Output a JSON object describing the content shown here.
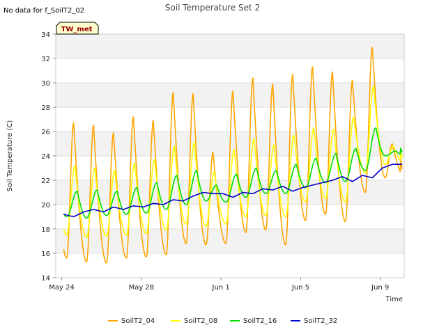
{
  "chart_data": {
    "type": "line",
    "title": "Soil Temperature Set 2",
    "note": "No data for f_SoilT2_02",
    "badge": "TW_met",
    "xlabel": "Time",
    "ylabel": "Soil Temperature (C)",
    "xlim": [
      -0.3,
      17.2
    ],
    "ylim": [
      14,
      34
    ],
    "y_ticks": [
      14,
      16,
      18,
      20,
      22,
      24,
      26,
      28,
      30,
      32,
      34
    ],
    "x_ticks": [
      {
        "value": 0,
        "label": "May 24"
      },
      {
        "value": 4,
        "label": "May 28"
      },
      {
        "value": 8,
        "label": "Jun 1"
      },
      {
        "value": 12,
        "label": "Jun 5"
      },
      {
        "value": 16,
        "label": "Jun 9"
      }
    ],
    "grid": "horizontal bands",
    "legend_position": "bottom",
    "series": [
      {
        "name": "SoilT2_04",
        "color": "#FFA500",
        "peak_hour": 0.6,
        "daily": [
          {
            "day": 0,
            "min": 15.6,
            "max": 26.7
          },
          {
            "day": 1,
            "min": 15.3,
            "max": 26.5
          },
          {
            "day": 2,
            "min": 15.2,
            "max": 25.9
          },
          {
            "day": 3,
            "min": 15.6,
            "max": 27.2
          },
          {
            "day": 4,
            "min": 15.7,
            "max": 26.9
          },
          {
            "day": 5,
            "min": 15.9,
            "max": 29.2
          },
          {
            "day": 6,
            "min": 16.8,
            "max": 29.1
          },
          {
            "day": 7,
            "min": 16.7,
            "max": 24.3
          },
          {
            "day": 8,
            "min": 16.8,
            "max": 29.3
          },
          {
            "day": 9,
            "min": 17.7,
            "max": 30.4
          },
          {
            "day": 10,
            "min": 17.9,
            "max": 29.9
          },
          {
            "day": 11,
            "min": 16.7,
            "max": 30.7
          },
          {
            "day": 12,
            "min": 18.7,
            "max": 31.3
          },
          {
            "day": 13,
            "min": 19.2,
            "max": 30.9
          },
          {
            "day": 14,
            "min": 18.6,
            "max": 30.2
          },
          {
            "day": 15,
            "min": 21.0,
            "max": 32.9
          },
          {
            "day": 16,
            "min": 22.2,
            "max": 25.0
          }
        ]
      },
      {
        "name": "SoilT2_08",
        "color": "#FFFF00",
        "peak_hour": 0.66,
        "daily": [
          {
            "day": 0,
            "min": 17.5,
            "max": 23.2
          },
          {
            "day": 1,
            "min": 17.3,
            "max": 23.0
          },
          {
            "day": 2,
            "min": 17.4,
            "max": 22.8
          },
          {
            "day": 3,
            "min": 17.5,
            "max": 23.4
          },
          {
            "day": 4,
            "min": 17.6,
            "max": 23.7
          },
          {
            "day": 5,
            "min": 17.9,
            "max": 24.8
          },
          {
            "day": 6,
            "min": 18.4,
            "max": 25.1
          },
          {
            "day": 7,
            "min": 18.2,
            "max": 22.7
          },
          {
            "day": 8,
            "min": 18.4,
            "max": 24.5
          },
          {
            "day": 9,
            "min": 19.0,
            "max": 25.4
          },
          {
            "day": 10,
            "min": 19.1,
            "max": 24.9
          },
          {
            "day": 11,
            "min": 19.0,
            "max": 25.7
          },
          {
            "day": 12,
            "min": 20.2,
            "max": 26.3
          },
          {
            "day": 13,
            "min": 20.5,
            "max": 26.2
          },
          {
            "day": 14,
            "min": 20.2,
            "max": 27.2
          },
          {
            "day": 15,
            "min": 22.6,
            "max": 29.7
          },
          {
            "day": 16,
            "min": 23.3,
            "max": 24.8
          }
        ]
      },
      {
        "name": "SoilT2_16",
        "color": "#00DD00",
        "peak_hour": 0.78,
        "daily": [
          {
            "day": 0,
            "min": 19.0,
            "max": 21.1
          },
          {
            "day": 1,
            "min": 18.9,
            "max": 21.2
          },
          {
            "day": 2,
            "min": 19.1,
            "max": 21.1
          },
          {
            "day": 3,
            "min": 19.2,
            "max": 21.4
          },
          {
            "day": 4,
            "min": 19.3,
            "max": 21.8
          },
          {
            "day": 5,
            "min": 19.6,
            "max": 22.4
          },
          {
            "day": 6,
            "min": 20.0,
            "max": 22.8
          },
          {
            "day": 7,
            "min": 20.3,
            "max": 21.6
          },
          {
            "day": 8,
            "min": 20.2,
            "max": 22.5
          },
          {
            "day": 9,
            "min": 20.6,
            "max": 23.0
          },
          {
            "day": 10,
            "min": 20.9,
            "max": 22.8
          },
          {
            "day": 11,
            "min": 20.9,
            "max": 23.3
          },
          {
            "day": 12,
            "min": 21.4,
            "max": 23.8
          },
          {
            "day": 13,
            "min": 21.8,
            "max": 24.2
          },
          {
            "day": 14,
            "min": 21.9,
            "max": 24.6
          },
          {
            "day": 15,
            "min": 22.8,
            "max": 26.3
          },
          {
            "day": 16,
            "min": 24.0,
            "max": 24.4
          }
        ]
      },
      {
        "name": "SoilT2_32",
        "color": "#0000CC",
        "points": [
          {
            "day": 0.0,
            "value": 19.2
          },
          {
            "day": 0.5,
            "value": 19.0
          },
          {
            "day": 1.0,
            "value": 19.4
          },
          {
            "day": 1.5,
            "value": 19.6
          },
          {
            "day": 2.0,
            "value": 19.4
          },
          {
            "day": 2.5,
            "value": 19.8
          },
          {
            "day": 3.0,
            "value": 19.6
          },
          {
            "day": 3.5,
            "value": 19.9
          },
          {
            "day": 4.0,
            "value": 19.8
          },
          {
            "day": 4.5,
            "value": 20.1
          },
          {
            "day": 5.0,
            "value": 20.0
          },
          {
            "day": 5.5,
            "value": 20.4
          },
          {
            "day": 6.0,
            "value": 20.3
          },
          {
            "day": 6.5,
            "value": 20.7
          },
          {
            "day": 7.0,
            "value": 21.0
          },
          {
            "day": 7.5,
            "value": 20.9
          },
          {
            "day": 8.0,
            "value": 20.9
          },
          {
            "day": 8.5,
            "value": 20.6
          },
          {
            "day": 9.0,
            "value": 21.0
          },
          {
            "day": 9.5,
            "value": 20.9
          },
          {
            "day": 10.0,
            "value": 21.3
          },
          {
            "day": 10.5,
            "value": 21.2
          },
          {
            "day": 11.0,
            "value": 21.5
          },
          {
            "day": 11.5,
            "value": 21.1
          },
          {
            "day": 12.0,
            "value": 21.4
          },
          {
            "day": 12.5,
            "value": 21.6
          },
          {
            "day": 13.0,
            "value": 21.8
          },
          {
            "day": 13.5,
            "value": 22.0
          },
          {
            "day": 14.0,
            "value": 22.3
          },
          {
            "day": 14.5,
            "value": 21.9
          },
          {
            "day": 15.0,
            "value": 22.4
          },
          {
            "day": 15.5,
            "value": 22.2
          },
          {
            "day": 16.0,
            "value": 23.0
          },
          {
            "day": 16.5,
            "value": 23.3
          },
          {
            "day": 17.0,
            "value": 23.3
          }
        ]
      }
    ]
  }
}
